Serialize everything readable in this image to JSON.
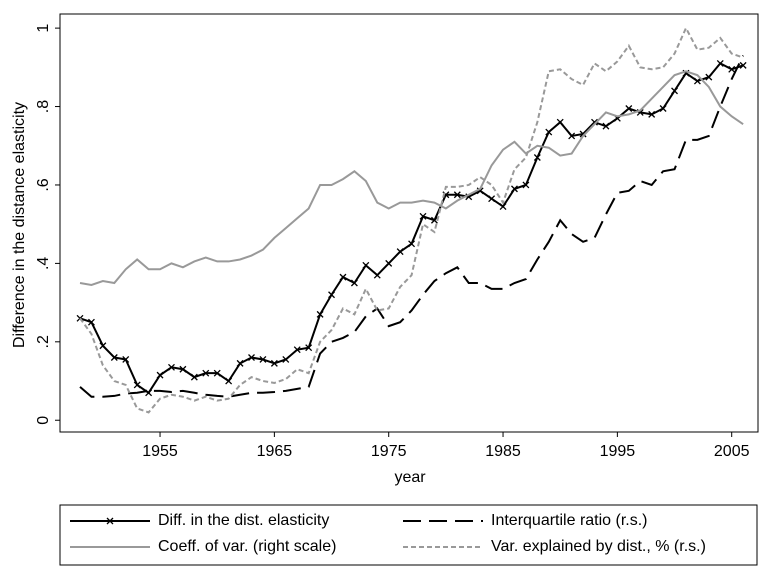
{
  "chart_data": {
    "type": "line",
    "x_label": "year",
    "y_label": "Difference in the distance elasticity",
    "x": [
      1948,
      1949,
      1950,
      1951,
      1952,
      1953,
      1954,
      1955,
      1956,
      1957,
      1958,
      1959,
      1960,
      1961,
      1962,
      1963,
      1964,
      1965,
      1966,
      1967,
      1968,
      1969,
      1970,
      1971,
      1972,
      1973,
      1974,
      1975,
      1976,
      1977,
      1978,
      1979,
      1980,
      1981,
      1982,
      1983,
      1984,
      1985,
      1986,
      1987,
      1988,
      1989,
      1990,
      1991,
      1992,
      1993,
      1994,
      1995,
      1996,
      1997,
      1998,
      1999,
      2000,
      2001,
      2002,
      2003,
      2004,
      2005,
      2006
    ],
    "xlim": [
      1946.25,
      2007.3
    ],
    "xticks": [
      1955,
      1965,
      1975,
      1985,
      1995,
      2005
    ],
    "ylim": [
      -0.03,
      1.036
    ],
    "yticks": [
      0,
      {
        "value": 0.2,
        "label": ".2"
      },
      {
        "value": 0.4,
        "label": ".4"
      },
      {
        "value": 0.6,
        "label": ".6"
      },
      {
        "value": 0.8,
        "label": ".8"
      },
      1
    ],
    "series": [
      {
        "name": "Diff. in the dist. elasticity",
        "color": "#000000",
        "style": "solid",
        "marker": "x",
        "values": [
          0.26,
          0.25,
          0.19,
          0.16,
          0.155,
          0.09,
          0.07,
          0.115,
          0.135,
          0.13,
          0.11,
          0.12,
          0.12,
          0.1,
          0.145,
          0.16,
          0.155,
          0.145,
          0.155,
          0.18,
          0.185,
          0.27,
          0.32,
          0.365,
          0.35,
          0.395,
          0.37,
          0.4,
          0.43,
          0.45,
          0.52,
          0.51,
          0.575,
          0.575,
          0.57,
          0.585,
          0.565,
          0.545,
          0.59,
          0.6,
          0.67,
          0.735,
          0.76,
          0.725,
          0.73,
          0.76,
          0.75,
          0.77,
          0.795,
          0.785,
          0.78,
          0.795,
          0.84,
          0.885,
          0.865,
          0.875,
          0.91,
          0.895,
          0.905
        ]
      },
      {
        "name": "Interquartile ratio (r.s.)",
        "color": "#000000",
        "style": "long-dash",
        "values": [
          0.085,
          0.06,
          0.06,
          0.062,
          0.068,
          0.07,
          0.075,
          0.075,
          0.072,
          0.075,
          0.07,
          0.065,
          0.062,
          0.06,
          0.065,
          0.07,
          0.07,
          0.072,
          0.075,
          0.08,
          0.085,
          0.17,
          0.2,
          0.21,
          0.225,
          0.265,
          0.285,
          0.24,
          0.25,
          0.28,
          0.32,
          0.355,
          0.375,
          0.39,
          0.35,
          0.35,
          0.335,
          0.335,
          0.35,
          0.36,
          0.41,
          0.455,
          0.51,
          0.475,
          0.455,
          0.465,
          0.525,
          0.58,
          0.585,
          0.61,
          0.6,
          0.635,
          0.64,
          0.715,
          0.715,
          0.725,
          0.8,
          0.87,
          0.93
        ]
      },
      {
        "name": "Coeff. of var. (right scale)",
        "color": "#999999",
        "style": "solid",
        "values": [
          0.35,
          0.345,
          0.355,
          0.35,
          0.385,
          0.41,
          0.385,
          0.385,
          0.4,
          0.39,
          0.405,
          0.415,
          0.405,
          0.405,
          0.41,
          0.42,
          0.435,
          0.465,
          0.49,
          0.515,
          0.54,
          0.6,
          0.6,
          0.615,
          0.635,
          0.61,
          0.555,
          0.54,
          0.555,
          0.555,
          0.56,
          0.555,
          0.54,
          0.56,
          0.575,
          0.59,
          0.65,
          0.69,
          0.71,
          0.68,
          0.7,
          0.695,
          0.675,
          0.68,
          0.725,
          0.755,
          0.785,
          0.775,
          0.78,
          0.79,
          0.82,
          0.85,
          0.88,
          0.89,
          0.88,
          0.85,
          0.8,
          0.775,
          0.755
        ]
      },
      {
        "name": "Var. explained by dist., % (r.s.)",
        "color": "#999999",
        "style": "short-dash",
        "values": [
          0.26,
          0.22,
          0.14,
          0.1,
          0.09,
          0.03,
          0.02,
          0.055,
          0.065,
          0.06,
          0.05,
          0.06,
          0.05,
          0.055,
          0.09,
          0.11,
          0.1,
          0.095,
          0.105,
          0.13,
          0.12,
          0.2,
          0.23,
          0.285,
          0.27,
          0.335,
          0.28,
          0.285,
          0.34,
          0.37,
          0.5,
          0.48,
          0.595,
          0.595,
          0.6,
          0.62,
          0.6,
          0.555,
          0.64,
          0.67,
          0.76,
          0.89,
          0.895,
          0.87,
          0.855,
          0.91,
          0.89,
          0.915,
          0.955,
          0.9,
          0.895,
          0.9,
          0.935,
          1.0,
          0.945,
          0.95,
          0.975,
          0.935,
          0.925
        ]
      }
    ]
  }
}
